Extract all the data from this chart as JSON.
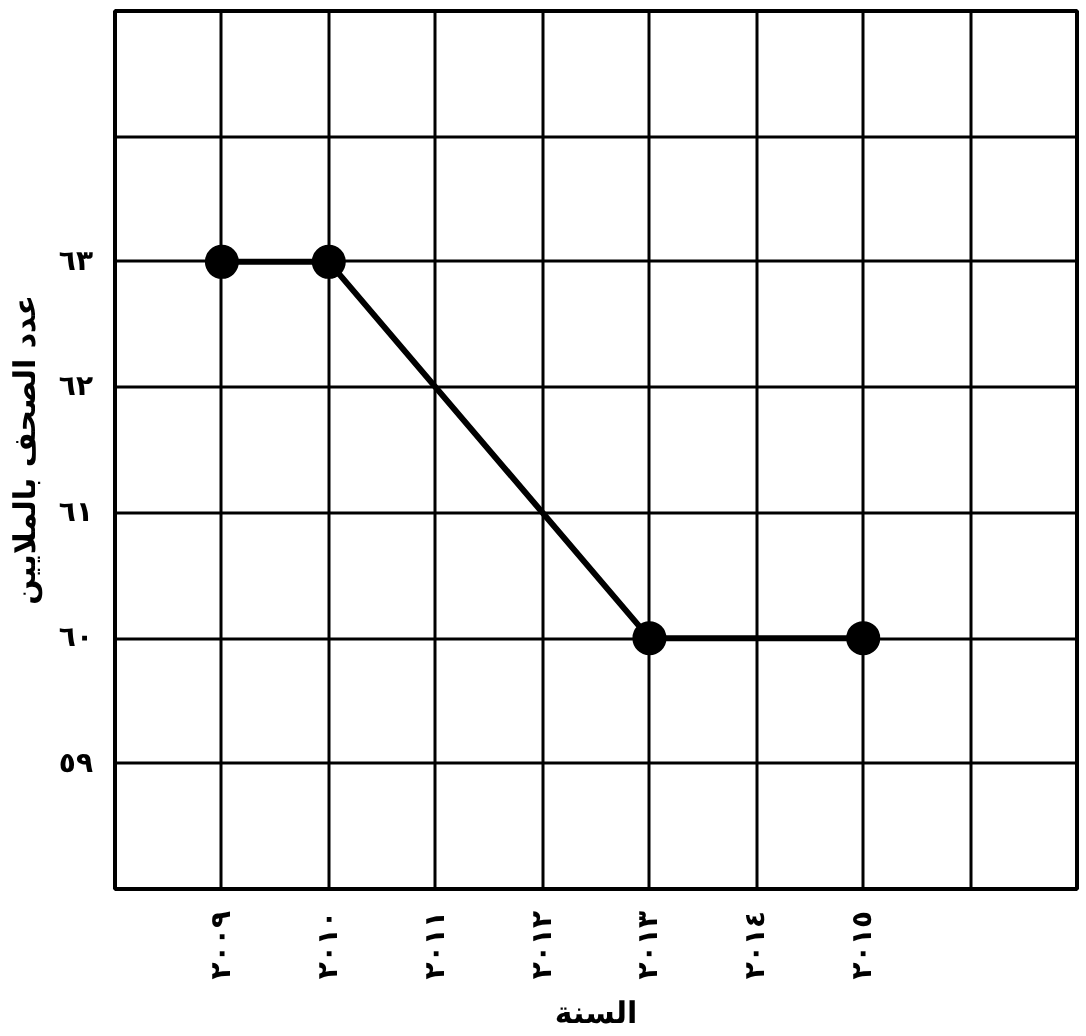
{
  "chart_data": {
    "type": "line",
    "xlabel": "السنة",
    "ylabel": "عدد الصحف بالملايين",
    "x": [
      2009,
      2010,
      2013,
      2015
    ],
    "series": [
      {
        "color": "#000000",
        "values": [
          63,
          63,
          60,
          60
        ]
      }
    ],
    "xlim": [
      2008,
      2017
    ],
    "xticks": [
      {
        "value": 2008,
        "label": null
      },
      {
        "value": 2009,
        "label": "٢٠٠٩"
      },
      {
        "value": 2010,
        "label": "٢٠١٠"
      },
      {
        "value": 2011,
        "label": "٢٠١١"
      },
      {
        "value": 2012,
        "label": "٢٠١٢"
      },
      {
        "value": 2013,
        "label": "٢٠١٣"
      },
      {
        "value": 2014,
        "label": "٢٠١٤"
      },
      {
        "value": 2015,
        "label": "٢٠١٥"
      },
      {
        "value": 2016,
        "label": null
      }
    ],
    "ylim": [
      58,
      65
    ],
    "yticks": [
      {
        "value": 58,
        "label": null
      },
      {
        "value": 59,
        "label": "٥٩"
      },
      {
        "value": 60,
        "label": "٦٠"
      },
      {
        "value": 61,
        "label": "٦١"
      },
      {
        "value": 62,
        "label": "٦٢"
      },
      {
        "value": 63,
        "label": "٦٣"
      },
      {
        "value": 64,
        "label": null
      },
      {
        "value": 65,
        "label": null
      }
    ],
    "grid": true,
    "marker": "circle",
    "line_style": "solid"
  }
}
